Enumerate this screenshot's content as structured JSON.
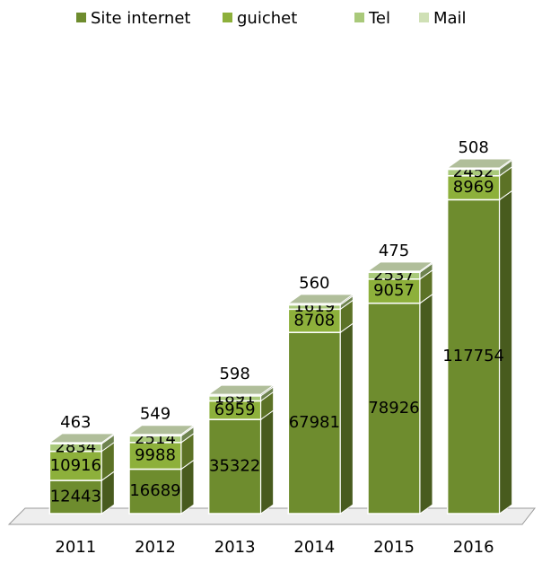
{
  "chart_data": {
    "type": "bar3d_stacked",
    "categories": [
      "2011",
      "2012",
      "2013",
      "2014",
      "2015",
      "2016"
    ],
    "series": [
      {
        "name": "Site internet",
        "color": "#6e8c2e",
        "values": [
          12443,
          16689,
          35322,
          67981,
          78926,
          117754
        ]
      },
      {
        "name": "guichet",
        "color": "#8db03b",
        "values": [
          10916,
          9988,
          6959,
          8708,
          9057,
          8969
        ]
      },
      {
        "name": "Tel",
        "color": "#a9c97a",
        "values": [
          2834,
          2514,
          1891,
          1619,
          2537,
          2452
        ]
      },
      {
        "name": "Mail",
        "color": "#cfe0b5",
        "values": [
          463,
          549,
          598,
          560,
          475,
          508
        ]
      }
    ],
    "legend": "top"
  }
}
